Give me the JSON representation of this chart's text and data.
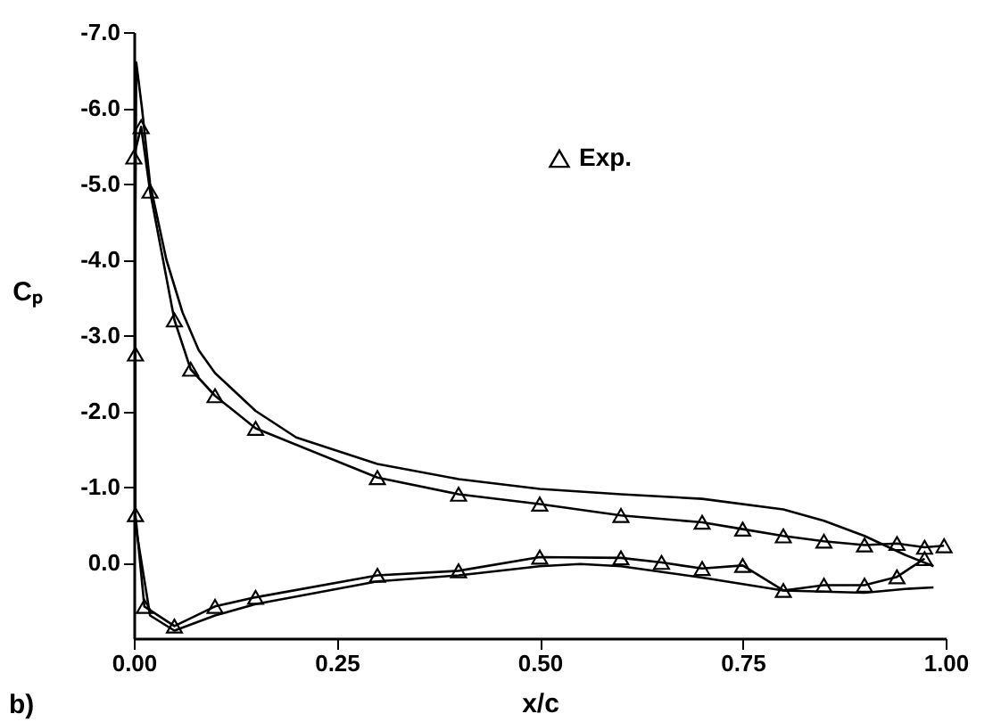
{
  "chart_data": {
    "type": "line",
    "xlabel": "x/c",
    "ylabel": "Cₚ",
    "annotations": [
      "b)"
    ],
    "xlim": [
      0.0,
      1.0
    ],
    "ylim": [
      1.0,
      -7.0
    ],
    "xticks": [
      {
        "value": 0,
        "label": "0.00"
      },
      {
        "value": 0.25,
        "label": "0.25"
      },
      {
        "value": 0.5,
        "label": "0.50"
      },
      {
        "value": 0.75,
        "label": "0.75"
      },
      {
        "value": 1.0,
        "label": "1.00"
      }
    ],
    "yticks": [
      {
        "value": -7,
        "label": "-7.0"
      },
      {
        "value": -6,
        "label": "-6.0"
      },
      {
        "value": -5,
        "label": "-5.0"
      },
      {
        "value": -4,
        "label": "-4.0"
      },
      {
        "value": -3,
        "label": "-3.0"
      },
      {
        "value": -2,
        "label": "-2.0"
      },
      {
        "value": -1,
        "label": "-1.0"
      },
      {
        "value": 0,
        "label": "0.0"
      }
    ],
    "grid": false,
    "legend": "top right",
    "series": [
      {
        "color": "#000000",
        "marker": "none",
        "line_style": "solid",
        "x": [
          0.985,
          0.95,
          0.9,
          0.8,
          0.7,
          0.6,
          0.55,
          0.5,
          0.4,
          0.3,
          0.15,
          0.1,
          0.05,
          0.02,
          0.005,
          0.0,
          0.003,
          0.01,
          0.02,
          0.04,
          0.06,
          0.08,
          0.1,
          0.15,
          0.2,
          0.3,
          0.4,
          0.5,
          0.6,
          0.7,
          0.8,
          0.85,
          0.9,
          0.95,
          0.985
        ],
        "values": [
          0.33,
          0.35,
          0.4,
          0.37,
          0.2,
          0.05,
          0.02,
          0.05,
          0.17,
          0.25,
          0.55,
          0.7,
          0.9,
          0.7,
          -0.3,
          -0.6,
          -6.6,
          -6.0,
          -5.0,
          -4.0,
          -3.3,
          -2.8,
          -2.5,
          -2.0,
          -1.65,
          -1.3,
          -1.1,
          -0.97,
          -0.9,
          -0.84,
          -0.7,
          -0.55,
          -0.35,
          -0.1,
          0.05
        ]
      },
      {
        "name": "Exp.",
        "color": "#000000",
        "marker": "triangle",
        "line_style": "solid",
        "x": [
          0.974,
          0.94,
          0.9,
          0.85,
          0.8,
          0.75,
          0.7,
          0.65,
          0.6,
          0.5,
          0.4,
          0.3,
          0.15,
          0.1,
          0.05,
          0.013,
          0.002,
          0.002,
          0.0,
          0.009,
          0.02,
          0.05,
          0.07,
          0.1,
          0.15,
          0.3,
          0.4,
          0.5,
          0.6,
          0.7,
          0.75,
          0.8,
          0.85,
          0.9,
          0.94,
          0.974,
          0.998
        ],
        "values": [
          -0.05,
          0.19,
          0.3,
          0.3,
          0.37,
          0.04,
          0.08,
          0.0,
          -0.06,
          -0.07,
          0.11,
          0.17,
          0.46,
          0.58,
          0.84,
          0.58,
          -0.63,
          -2.75,
          -5.35,
          -5.75,
          -4.9,
          -3.2,
          -2.55,
          -2.2,
          -1.77,
          -1.12,
          -0.9,
          -0.77,
          -0.62,
          -0.53,
          -0.44,
          -0.35,
          -0.28,
          -0.23,
          -0.25,
          -0.2,
          -0.22
        ]
      }
    ]
  }
}
